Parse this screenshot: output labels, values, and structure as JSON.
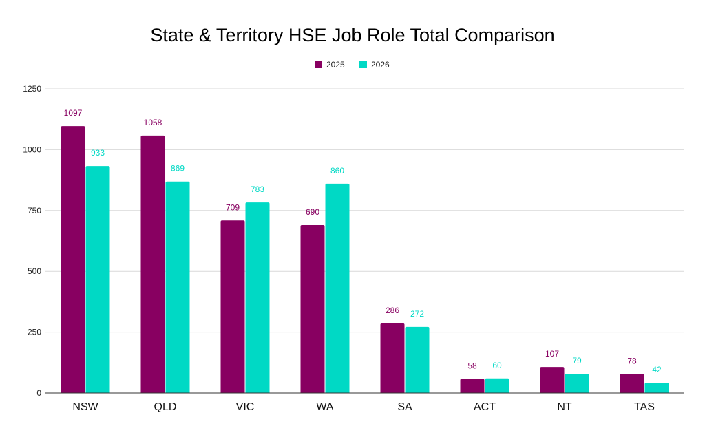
{
  "chart_data": {
    "type": "bar",
    "title": "State & Territory HSE Job Role Total Comparison",
    "xlabel": "",
    "ylabel": "",
    "categories": [
      "NSW",
      "QLD",
      "VIC",
      "WA",
      "SA",
      "ACT",
      "NT",
      "TAS"
    ],
    "series": [
      {
        "name": "2025",
        "color": "#880061",
        "values": [
          1097,
          1058,
          709,
          690,
          286,
          58,
          107,
          78
        ]
      },
      {
        "name": "2026",
        "color": "#00D9C5",
        "values": [
          933,
          869,
          783,
          860,
          272,
          60,
          79,
          42
        ]
      }
    ],
    "ylim": [
      0,
      1250
    ],
    "yticks": [
      "0",
      "250",
      "500",
      "750",
      "1000",
      "1250"
    ],
    "grid": true,
    "legend": "top-center",
    "data_labels": true
  }
}
